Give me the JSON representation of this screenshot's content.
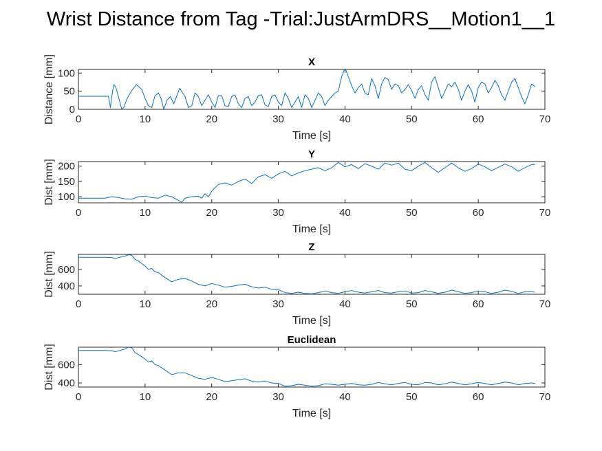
{
  "figure": {
    "suptitle": "Wrist Distance from Tag -Trial:JustArmDRS__Motion1__1"
  },
  "colors": {
    "line": "#0072bd",
    "axes": "#262626",
    "background": "#ffffff"
  },
  "chart_data": [
    {
      "type": "line",
      "title": "X",
      "xlabel": "Time [s]",
      "ylabel": "Distance [mm]",
      "xlim": [
        0,
        70
      ],
      "ylim": [
        0,
        110
      ],
      "xticks": [
        0,
        10,
        20,
        30,
        40,
        50,
        60,
        70
      ],
      "yticks": [
        0,
        50,
        100
      ],
      "grid": false,
      "series": [
        {
          "x": [
            0,
            4.5,
            4.8,
            5.0,
            5.3,
            5.6,
            6.0,
            6.5,
            6.8,
            7.3,
            8.0,
            8.7,
            9.5,
            10.0,
            10.5,
            11.0,
            11.5,
            12.0,
            12.4,
            12.8,
            13.3,
            13.8,
            14.3,
            15.2,
            16.0,
            16.5,
            17.0,
            17.5,
            18.0,
            18.5,
            19.0,
            19.5,
            20.0,
            20.5,
            21.0,
            21.5,
            22.0,
            22.5,
            23.0,
            23.5,
            24.0,
            24.5,
            25.0,
            25.5,
            26.0,
            26.5,
            27.0,
            27.5,
            28.0,
            28.5,
            29.0,
            29.5,
            30.0,
            30.5,
            31.0,
            31.5,
            32.0,
            32.5,
            33.0,
            33.5,
            34.0,
            34.5,
            35.0,
            35.5,
            36.0,
            36.5,
            37.0,
            37.5,
            38.0,
            38.5,
            39.0,
            39.5,
            40.0,
            40.5,
            41.0,
            41.5,
            42.0,
            42.5,
            43.0,
            43.5,
            44.0,
            44.5,
            45.0,
            45.5,
            46.0,
            46.5,
            47.0,
            47.5,
            48.0,
            48.5,
            49.0,
            49.5,
            50.0,
            50.5,
            51.0,
            51.5,
            52.0,
            52.5,
            53.0,
            53.5,
            54.0,
            54.5,
            55.0,
            55.5,
            56.0,
            56.5,
            57.0,
            57.5,
            58.0,
            58.5,
            59.0,
            59.5,
            60.0,
            60.5,
            61.0,
            61.5,
            62.0,
            62.5,
            63.0,
            63.5,
            64.0,
            64.5,
            65.0,
            65.5,
            66.0,
            66.5,
            67.0,
            67.5,
            68.0,
            68.5
          ],
          "y": [
            36,
            36,
            5,
            35,
            68,
            62,
            35,
            0,
            5,
            30,
            52,
            68,
            55,
            30,
            10,
            5,
            38,
            45,
            30,
            0,
            25,
            35,
            15,
            58,
            35,
            5,
            10,
            45,
            35,
            10,
            25,
            40,
            20,
            5,
            38,
            38,
            10,
            8,
            35,
            40,
            15,
            5,
            30,
            35,
            10,
            20,
            38,
            40,
            12,
            8,
            35,
            40,
            20,
            10,
            45,
            30,
            5,
            20,
            35,
            5,
            40,
            30,
            5,
            25,
            45,
            35,
            10,
            25,
            35,
            45,
            50,
            90,
            115,
            90,
            65,
            45,
            60,
            70,
            45,
            40,
            85,
            65,
            30,
            70,
            88,
            82,
            55,
            70,
            65,
            45,
            55,
            68,
            52,
            30,
            55,
            65,
            40,
            25,
            75,
            90,
            60,
            30,
            50,
            70,
            62,
            75,
            55,
            25,
            50,
            68,
            50,
            20,
            60,
            75,
            70,
            45,
            60,
            80,
            65,
            40,
            25,
            50,
            75,
            85,
            60,
            35,
            15,
            40,
            70,
            63
          ]
        }
      ]
    },
    {
      "type": "line",
      "title": "Y",
      "xlabel": "Time [s]",
      "ylabel": "Dist [mm]",
      "xlim": [
        0,
        70
      ],
      "ylim": [
        80,
        215
      ],
      "xticks": [
        0,
        10,
        20,
        30,
        40,
        50,
        60,
        70
      ],
      "yticks": [
        100,
        150,
        200
      ],
      "grid": false,
      "series": [
        {
          "x": [
            0,
            2,
            4,
            5,
            6,
            7,
            8,
            9,
            10,
            11,
            12,
            13,
            14,
            15,
            15.5,
            16,
            17,
            18,
            18.5,
            19,
            19.5,
            20,
            21,
            22,
            23,
            24,
            25,
            26,
            27,
            28,
            29,
            30,
            31,
            32,
            33,
            34,
            35,
            36,
            37,
            38,
            39,
            40,
            41,
            42,
            43,
            44,
            45,
            46,
            47,
            48,
            49,
            50,
            51,
            52,
            53,
            54,
            55,
            56,
            57,
            58,
            59,
            60,
            61,
            62,
            63,
            64,
            65,
            66,
            67,
            68,
            68.5
          ],
          "y": [
            95,
            95,
            95,
            100,
            97,
            93,
            92,
            100,
            102,
            97,
            95,
            105,
            100,
            88,
            82,
            95,
            100,
            102,
            95,
            110,
            100,
            118,
            140,
            145,
            138,
            150,
            158,
            143,
            165,
            172,
            160,
            175,
            183,
            168,
            178,
            185,
            190,
            195,
            185,
            195,
            212,
            198,
            205,
            192,
            208,
            200,
            190,
            210,
            203,
            210,
            190,
            185,
            200,
            212,
            195,
            180,
            195,
            210,
            195,
            183,
            192,
            207,
            198,
            185,
            196,
            207,
            198,
            183,
            195,
            205,
            205
          ]
        }
      ]
    },
    {
      "type": "line",
      "title": "Z",
      "xlabel": "Time [s]",
      "ylabel": "Dist [mm]",
      "xlim": [
        0,
        70
      ],
      "ylim": [
        300,
        780
      ],
      "xticks": [
        0,
        10,
        20,
        30,
        40,
        50,
        60,
        70
      ],
      "yticks": [
        400,
        600
      ],
      "grid": false,
      "series": [
        {
          "x": [
            0,
            2,
            4,
            5,
            5.5,
            6,
            7,
            7.5,
            8,
            8.5,
            9,
            10,
            10.5,
            11,
            11.5,
            12,
            13,
            14,
            15,
            16,
            17,
            18,
            19,
            20,
            21,
            22,
            23,
            24,
            25,
            26,
            27,
            28,
            29,
            30,
            31,
            32,
            33,
            34,
            35,
            36,
            37,
            38,
            39,
            40,
            41,
            42,
            43,
            44,
            45,
            46,
            47,
            48,
            49,
            50,
            51,
            52,
            53,
            54,
            55,
            56,
            57,
            58,
            59,
            60,
            61,
            62,
            63,
            64,
            65,
            66,
            67,
            68,
            68.5
          ],
          "y": [
            745,
            745,
            745,
            742,
            730,
            740,
            760,
            775,
            770,
            720,
            700,
            640,
            600,
            610,
            570,
            560,
            500,
            450,
            480,
            490,
            460,
            420,
            400,
            430,
            410,
            385,
            395,
            410,
            420,
            390,
            375,
            385,
            360,
            355,
            320,
            310,
            325,
            310,
            305,
            320,
            340,
            320,
            310,
            330,
            345,
            325,
            315,
            330,
            345,
            320,
            315,
            330,
            340,
            315,
            320,
            345,
            330,
            310,
            325,
            350,
            330,
            310,
            320,
            340,
            330,
            310,
            325,
            350,
            335,
            310,
            330,
            330,
            325
          ]
        }
      ]
    },
    {
      "type": "line",
      "title": "Euclidean",
      "xlabel": "Time [s]",
      "ylabel": "Dist [mm]",
      "xlim": [
        0,
        70
      ],
      "ylim": [
        355,
        790
      ],
      "xticks": [
        0,
        10,
        20,
        30,
        40,
        50,
        60,
        70
      ],
      "yticks": [
        400,
        600
      ],
      "grid": false,
      "series": [
        {
          "x": [
            0,
            2,
            4,
            5,
            5.5,
            6,
            7,
            7.5,
            8,
            8.5,
            9,
            10,
            10.5,
            11,
            11.5,
            12,
            13,
            14,
            15,
            16,
            17,
            18,
            19,
            20,
            21,
            22,
            23,
            24,
            25,
            26,
            27,
            28,
            29,
            30,
            31,
            32,
            33,
            34,
            35,
            36,
            37,
            38,
            39,
            40,
            41,
            42,
            43,
            44,
            45,
            46,
            47,
            48,
            49,
            50,
            51,
            52,
            53,
            54,
            55,
            56,
            57,
            58,
            59,
            60,
            61,
            62,
            63,
            64,
            65,
            66,
            67,
            68,
            68.5
          ],
          "y": [
            755,
            755,
            755,
            752,
            740,
            750,
            770,
            790,
            785,
            730,
            710,
            660,
            630,
            640,
            600,
            590,
            540,
            490,
            510,
            510,
            480,
            450,
            440,
            460,
            440,
            415,
            425,
            435,
            445,
            420,
            410,
            420,
            400,
            395,
            365,
            370,
            385,
            375,
            365,
            370,
            390,
            385,
            375,
            385,
            395,
            380,
            375,
            385,
            405,
            390,
            380,
            395,
            405,
            385,
            380,
            405,
            400,
            380,
            390,
            410,
            395,
            380,
            390,
            405,
            395,
            380,
            395,
            410,
            400,
            380,
            395,
            400,
            395
          ]
        }
      ]
    }
  ]
}
